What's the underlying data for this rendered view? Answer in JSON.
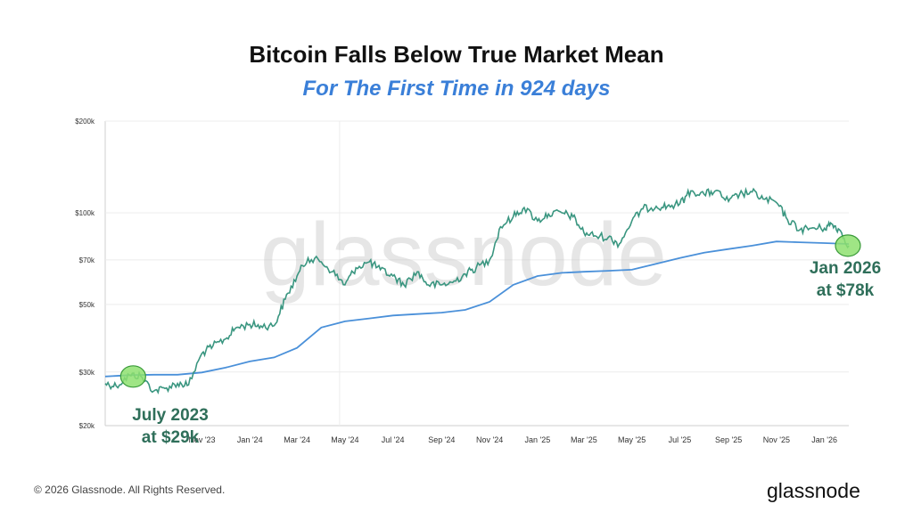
{
  "header": {
    "title": "Bitcoin Falls Below True Market Mean",
    "subtitle": "For The First Time in 924 days"
  },
  "footer": {
    "copyright": "© 2026 Glassnode. All Rights Reserved.",
    "brand": "glassnode"
  },
  "colors": {
    "price": "#3a9680",
    "mean": "#4a90d9",
    "subtitle": "#3a7fd8",
    "annotation_text": "#2f6f5a",
    "highlight": "#8ee070"
  },
  "chart_data": {
    "type": "line",
    "watermark": "glassnode",
    "y_scale": "log",
    "ylim": [
      20000,
      200000
    ],
    "y_ticks": [
      {
        "value": 20000,
        "label": "$20k"
      },
      {
        "value": 30000,
        "label": "$30k"
      },
      {
        "value": 50000,
        "label": "$50k"
      },
      {
        "value": 70000,
        "label": "$70k"
      },
      {
        "value": 100000,
        "label": "$100k"
      },
      {
        "value": 200000,
        "label": "$200k"
      }
    ],
    "xlim": [
      "2023-07-01",
      "2026-02-01"
    ],
    "x_ticks": [
      {
        "date": "2023-11-01",
        "label": "Nov '23"
      },
      {
        "date": "2024-01-01",
        "label": "Jan '24"
      },
      {
        "date": "2024-03-01",
        "label": "Mar '24"
      },
      {
        "date": "2024-05-01",
        "label": "May '24"
      },
      {
        "date": "2024-07-01",
        "label": "Jul '24"
      },
      {
        "date": "2024-09-01",
        "label": "Sep '24"
      },
      {
        "date": "2024-11-01",
        "label": "Nov '24"
      },
      {
        "date": "2025-01-01",
        "label": "Jan '25"
      },
      {
        "date": "2025-03-01",
        "label": "Mar '25"
      },
      {
        "date": "2025-05-01",
        "label": "May '25"
      },
      {
        "date": "2025-07-01",
        "label": "Jul '25"
      },
      {
        "date": "2025-09-01",
        "label": "Sep '25"
      },
      {
        "date": "2025-11-01",
        "label": "Nov '25"
      },
      {
        "date": "2026-01-01",
        "label": "Jan '26"
      }
    ],
    "series": [
      {
        "key": "price",
        "points": [
          [
            "2023-07-01",
            27500
          ],
          [
            "2023-07-15",
            27000
          ],
          [
            "2023-08-01",
            29300
          ],
          [
            "2023-08-15",
            29100
          ],
          [
            "2023-09-01",
            26000
          ],
          [
            "2023-09-15",
            26500
          ],
          [
            "2023-10-01",
            27500
          ],
          [
            "2023-10-15",
            27200
          ],
          [
            "2023-11-01",
            34500
          ],
          [
            "2023-11-15",
            36500
          ],
          [
            "2023-12-01",
            38500
          ],
          [
            "2023-12-15",
            42000
          ],
          [
            "2024-01-01",
            43000
          ],
          [
            "2024-01-15",
            42500
          ],
          [
            "2024-02-01",
            42600
          ],
          [
            "2024-02-15",
            52000
          ],
          [
            "2024-03-01",
            62000
          ],
          [
            "2024-03-15",
            71000
          ],
          [
            "2024-04-01",
            69000
          ],
          [
            "2024-04-15",
            64000
          ],
          [
            "2024-05-01",
            58000
          ],
          [
            "2024-05-15",
            66000
          ],
          [
            "2024-06-01",
            69000
          ],
          [
            "2024-06-15",
            65000
          ],
          [
            "2024-07-01",
            62000
          ],
          [
            "2024-07-15",
            58000
          ],
          [
            "2024-08-01",
            64000
          ],
          [
            "2024-08-15",
            58000
          ],
          [
            "2024-09-01",
            58000
          ],
          [
            "2024-09-15",
            59000
          ],
          [
            "2024-10-01",
            63000
          ],
          [
            "2024-10-15",
            66000
          ],
          [
            "2024-11-01",
            70000
          ],
          [
            "2024-11-15",
            90000
          ],
          [
            "2024-12-01",
            97000
          ],
          [
            "2024-12-15",
            104000
          ],
          [
            "2025-01-01",
            94000
          ],
          [
            "2025-01-15",
            99000
          ],
          [
            "2025-02-01",
            100000
          ],
          [
            "2025-02-15",
            97000
          ],
          [
            "2025-03-01",
            86000
          ],
          [
            "2025-03-15",
            84000
          ],
          [
            "2025-04-01",
            83000
          ],
          [
            "2025-04-15",
            79000
          ],
          [
            "2025-05-01",
            94000
          ],
          [
            "2025-05-15",
            103000
          ],
          [
            "2025-06-01",
            105000
          ],
          [
            "2025-06-15",
            105000
          ],
          [
            "2025-07-01",
            107000
          ],
          [
            "2025-07-15",
            118000
          ],
          [
            "2025-08-01",
            115000
          ],
          [
            "2025-08-15",
            118000
          ],
          [
            "2025-09-01",
            109000
          ],
          [
            "2025-09-15",
            115000
          ],
          [
            "2025-10-01",
            117000
          ],
          [
            "2025-10-15",
            111000
          ],
          [
            "2025-11-01",
            108000
          ],
          [
            "2025-11-15",
            95000
          ],
          [
            "2025-12-01",
            88000
          ],
          [
            "2025-12-15",
            89000
          ],
          [
            "2026-01-01",
            89000
          ],
          [
            "2026-01-10",
            92000
          ],
          [
            "2026-01-20",
            88000
          ],
          [
            "2026-02-01",
            78000
          ]
        ]
      },
      {
        "key": "mean",
        "points": [
          [
            "2023-07-01",
            29000
          ],
          [
            "2023-08-01",
            29300
          ],
          [
            "2023-09-01",
            29400
          ],
          [
            "2023-10-01",
            29400
          ],
          [
            "2023-11-01",
            29900
          ],
          [
            "2023-12-01",
            31000
          ],
          [
            "2024-01-01",
            32500
          ],
          [
            "2024-02-01",
            33500
          ],
          [
            "2024-03-01",
            36000
          ],
          [
            "2024-04-01",
            42000
          ],
          [
            "2024-05-01",
            44000
          ],
          [
            "2024-06-01",
            45000
          ],
          [
            "2024-07-01",
            46000
          ],
          [
            "2024-08-01",
            46500
          ],
          [
            "2024-09-01",
            47000
          ],
          [
            "2024-10-01",
            48000
          ],
          [
            "2024-11-01",
            51000
          ],
          [
            "2024-12-01",
            58000
          ],
          [
            "2025-01-01",
            62000
          ],
          [
            "2025-02-01",
            63500
          ],
          [
            "2025-03-01",
            64000
          ],
          [
            "2025-04-01",
            64500
          ],
          [
            "2025-05-01",
            65000
          ],
          [
            "2025-06-01",
            68000
          ],
          [
            "2025-07-01",
            71000
          ],
          [
            "2025-08-01",
            74000
          ],
          [
            "2025-09-01",
            76000
          ],
          [
            "2025-10-01",
            78000
          ],
          [
            "2025-11-01",
            80500
          ],
          [
            "2025-12-01",
            80000
          ],
          [
            "2026-01-01",
            79500
          ],
          [
            "2026-02-01",
            79000
          ]
        ]
      }
    ],
    "annotations": [
      {
        "date": "2023-08-01",
        "value": 29000,
        "line1": "July 2023",
        "line2": "at $29k"
      },
      {
        "date": "2026-02-01",
        "value": 78000,
        "line1": "Jan 2026",
        "line2": "at $78k"
      }
    ]
  }
}
